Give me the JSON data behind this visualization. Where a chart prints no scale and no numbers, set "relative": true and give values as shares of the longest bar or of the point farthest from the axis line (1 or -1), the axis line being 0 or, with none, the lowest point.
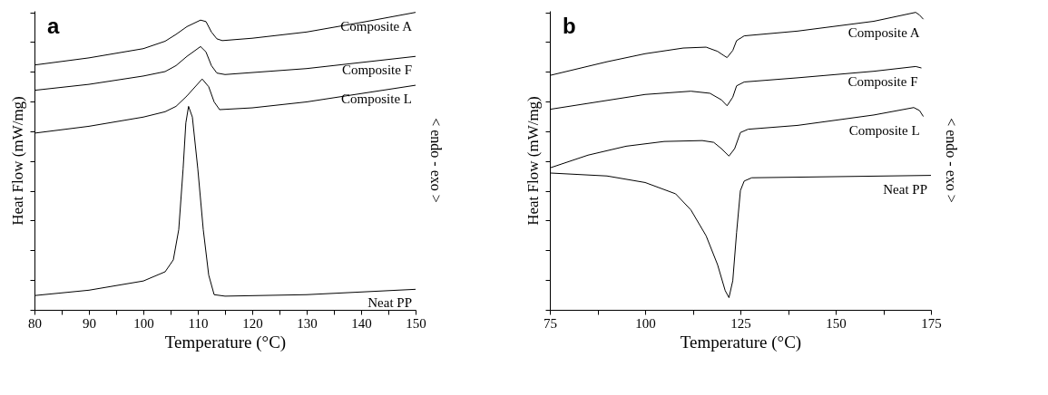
{
  "chart_data": [
    {
      "type": "line",
      "title": "a",
      "xlabel": "Temperature (°C)",
      "ylabel": "Heat Flow (mW/mg)",
      "y2label": "< endo - exo >",
      "relative": true,
      "tick_labels": "x",
      "grid": false,
      "legend": false,
      "marker": "none",
      "line_style": "solid",
      "xlim": [
        80,
        150
      ],
      "xticks": [
        80,
        {
          "value": 85,
          "label": null
        },
        90,
        {
          "value": 95,
          "label": null
        },
        100,
        {
          "value": 105,
          "label": null
        },
        110,
        {
          "value": 115,
          "label": null
        },
        120,
        {
          "value": 125,
          "label": null
        },
        130,
        {
          "value": 135,
          "label": null
        },
        140,
        {
          "value": 145,
          "label": null
        },
        150
      ],
      "series": [
        {
          "name": "Composite A",
          "color": "#000000",
          "x": [
            80,
            90,
            100,
            104,
            106,
            108,
            110.5,
            111.5,
            112.5,
            113.5,
            114.5,
            120,
            130,
            140,
            150
          ],
          "values": [
            0.823,
            0.847,
            0.878,
            0.903,
            0.926,
            0.952,
            0.974,
            0.969,
            0.934,
            0.911,
            0.905,
            0.913,
            0.934,
            0.966,
            1.0
          ]
        },
        {
          "name": "Composite F",
          "color": "#000000",
          "x": [
            80,
            90,
            100,
            104,
            106,
            108,
            110.5,
            111.5,
            112.5,
            113.5,
            115,
            130,
            150
          ],
          "values": [
            0.738,
            0.758,
            0.786,
            0.801,
            0.821,
            0.852,
            0.885,
            0.867,
            0.821,
            0.796,
            0.791,
            0.811,
            0.852
          ]
        },
        {
          "name": "Composite L",
          "color": "#000000",
          "x": [
            80,
            90,
            100,
            104,
            106,
            108,
            110.8,
            112,
            113,
            114,
            120,
            130,
            150
          ],
          "values": [
            0.594,
            0.617,
            0.648,
            0.666,
            0.684,
            0.719,
            0.776,
            0.75,
            0.699,
            0.673,
            0.679,
            0.699,
            0.755
          ]
        },
        {
          "name": "Neat PP",
          "color": "#000000",
          "x": [
            80,
            90,
            100,
            104,
            105.5,
            106.5,
            107.3,
            107.8,
            108.3,
            109,
            110,
            111,
            112,
            113,
            115,
            130,
            150
          ],
          "values": [
            0.048,
            0.066,
            0.097,
            0.128,
            0.168,
            0.27,
            0.474,
            0.628,
            0.684,
            0.648,
            0.474,
            0.27,
            0.117,
            0.051,
            0.046,
            0.051,
            0.069
          ]
        }
      ]
    },
    {
      "type": "line",
      "title": "b",
      "xlabel": "Temperature (°C)",
      "ylabel": "Heat Flow (mW/mg)",
      "y2label": "< endo - exo >",
      "relative": true,
      "tick_labels": "x",
      "grid": false,
      "legend": false,
      "marker": "none",
      "line_style": "solid",
      "xlim": [
        75,
        175
      ],
      "xticks": [
        75,
        {
          "value": 87.5,
          "label": null
        },
        100,
        {
          "value": 112.5,
          "label": null
        },
        125,
        {
          "value": 137.5,
          "label": null
        },
        150,
        {
          "value": 162.5,
          "label": null
        },
        175
      ],
      "series": [
        {
          "name": "Composite A",
          "color": "#000000",
          "x": [
            75,
            90,
            100,
            110,
            116,
            119,
            120.5,
            121.5,
            123,
            124,
            126,
            140,
            160,
            171,
            172,
            173
          ],
          "values": [
            0.788,
            0.834,
            0.861,
            0.88,
            0.883,
            0.869,
            0.856,
            0.848,
            0.872,
            0.905,
            0.921,
            0.937,
            0.97,
            1.0,
            0.991,
            0.977
          ]
        },
        {
          "name": "Composite F",
          "color": "#000000",
          "x": [
            75,
            90,
            100,
            112,
            117,
            120,
            121.5,
            123,
            124,
            126,
            140,
            160,
            171,
            172.5
          ],
          "values": [
            0.674,
            0.704,
            0.724,
            0.735,
            0.728,
            0.706,
            0.686,
            0.715,
            0.753,
            0.766,
            0.78,
            0.802,
            0.818,
            0.813
          ]
        },
        {
          "name": "Composite L",
          "color": "#000000",
          "x": [
            75,
            85,
            95,
            105,
            115,
            118,
            120,
            122,
            123.5,
            125,
            127,
            140,
            160,
            170.5,
            172,
            173
          ],
          "values": [
            0.477,
            0.52,
            0.55,
            0.566,
            0.569,
            0.563,
            0.542,
            0.517,
            0.542,
            0.596,
            0.607,
            0.62,
            0.655,
            0.68,
            0.67,
            0.65
          ]
        },
        {
          "name": "Neat PP",
          "color": "#000000",
          "x": [
            75,
            90,
            100,
            108,
            112,
            116,
            119,
            121,
            122,
            123,
            124,
            125,
            126,
            128,
            140,
            175
          ],
          "values": [
            0.46,
            0.45,
            0.428,
            0.39,
            0.336,
            0.249,
            0.152,
            0.065,
            0.041,
            0.098,
            0.26,
            0.401,
            0.433,
            0.444,
            0.446,
            0.452
          ]
        }
      ]
    }
  ]
}
